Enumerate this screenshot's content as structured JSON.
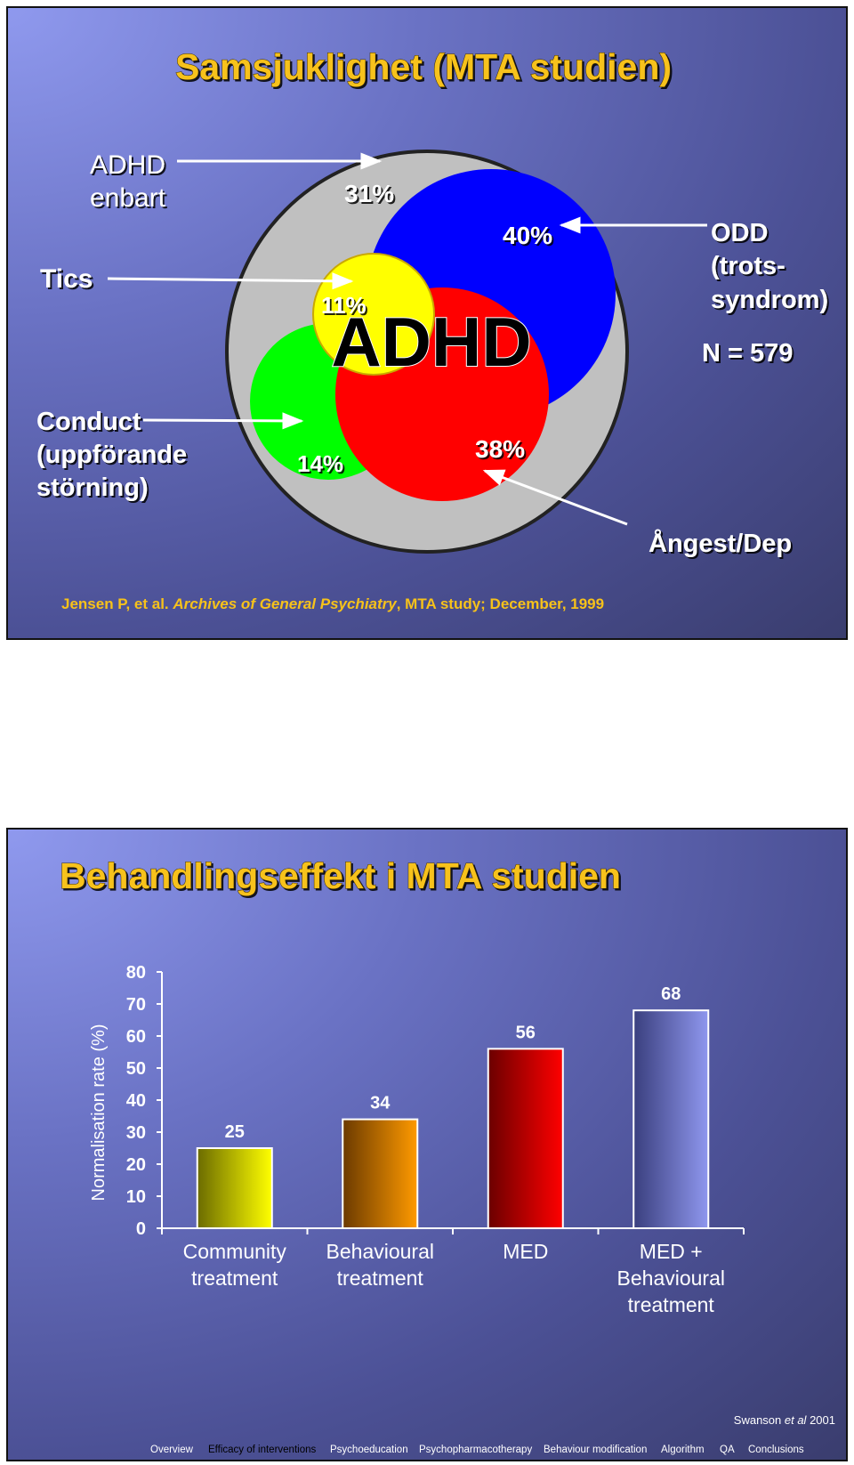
{
  "slide1": {
    "title": "Samsjuklighet (MTA studien)",
    "center_label": "ADHD",
    "n_label": "N = 579",
    "labels": {
      "adhd_only_1": "ADHD",
      "adhd_only_2": "enbart",
      "tics": "Tics",
      "conduct_1": "Conduct",
      "conduct_2": "(uppförande",
      "conduct_3": "störning)",
      "odd_1": "ODD",
      "odd_2": "(trots-",
      "odd_3": "syndrom)",
      "anxiety": "Ångest/Dep"
    },
    "percents": {
      "adhd_only": "31%",
      "odd": "40%",
      "tics": "11%",
      "conduct": "14%",
      "anxiety": "38%"
    },
    "colors": {
      "adhd_only": "#c0c0c0",
      "odd": "#0000ff",
      "tics": "#ffff00",
      "conduct": "#00ff00",
      "anxiety": "#ff0000"
    },
    "citation": {
      "authors": "Jensen P, et al.",
      "journal": "Archives of General Psychiatry",
      "rest": ", MTA study; December, 1999"
    }
  },
  "slide2": {
    "title": "Behandlingseffekt i MTA studien",
    "source": {
      "pre": "Swanson ",
      "italic": "et al",
      "post": " 2001"
    },
    "nav": [
      "Overview",
      "Efficacy of interventions",
      "Psychoeducation",
      "Psychopharmacotherapy",
      "Behaviour modification",
      "Algorithm",
      "QA",
      "Conclusions"
    ],
    "nav_active": "Efficacy of interventions"
  },
  "chart_data": {
    "type": "bar",
    "categories": [
      [
        "Community",
        "treatment"
      ],
      [
        "Behavioural",
        "treatment"
      ],
      [
        "MED"
      ],
      [
        "MED +",
        "Behavioural",
        "treatment"
      ]
    ],
    "values": [
      25,
      34,
      56,
      68
    ],
    "ylabel": "Normalisation rate (%)",
    "ylim": [
      0,
      80
    ],
    "yticks": [
      0,
      10,
      20,
      30,
      40,
      50,
      60,
      70,
      80
    ],
    "bar_colors": [
      [
        "#6b6b00",
        "#ffff00"
      ],
      [
        "#6b3a00",
        "#ff9a00"
      ],
      [
        "#6b0000",
        "#ff0000"
      ],
      [
        "#3a3f7e",
        "#8f97ee"
      ]
    ]
  }
}
